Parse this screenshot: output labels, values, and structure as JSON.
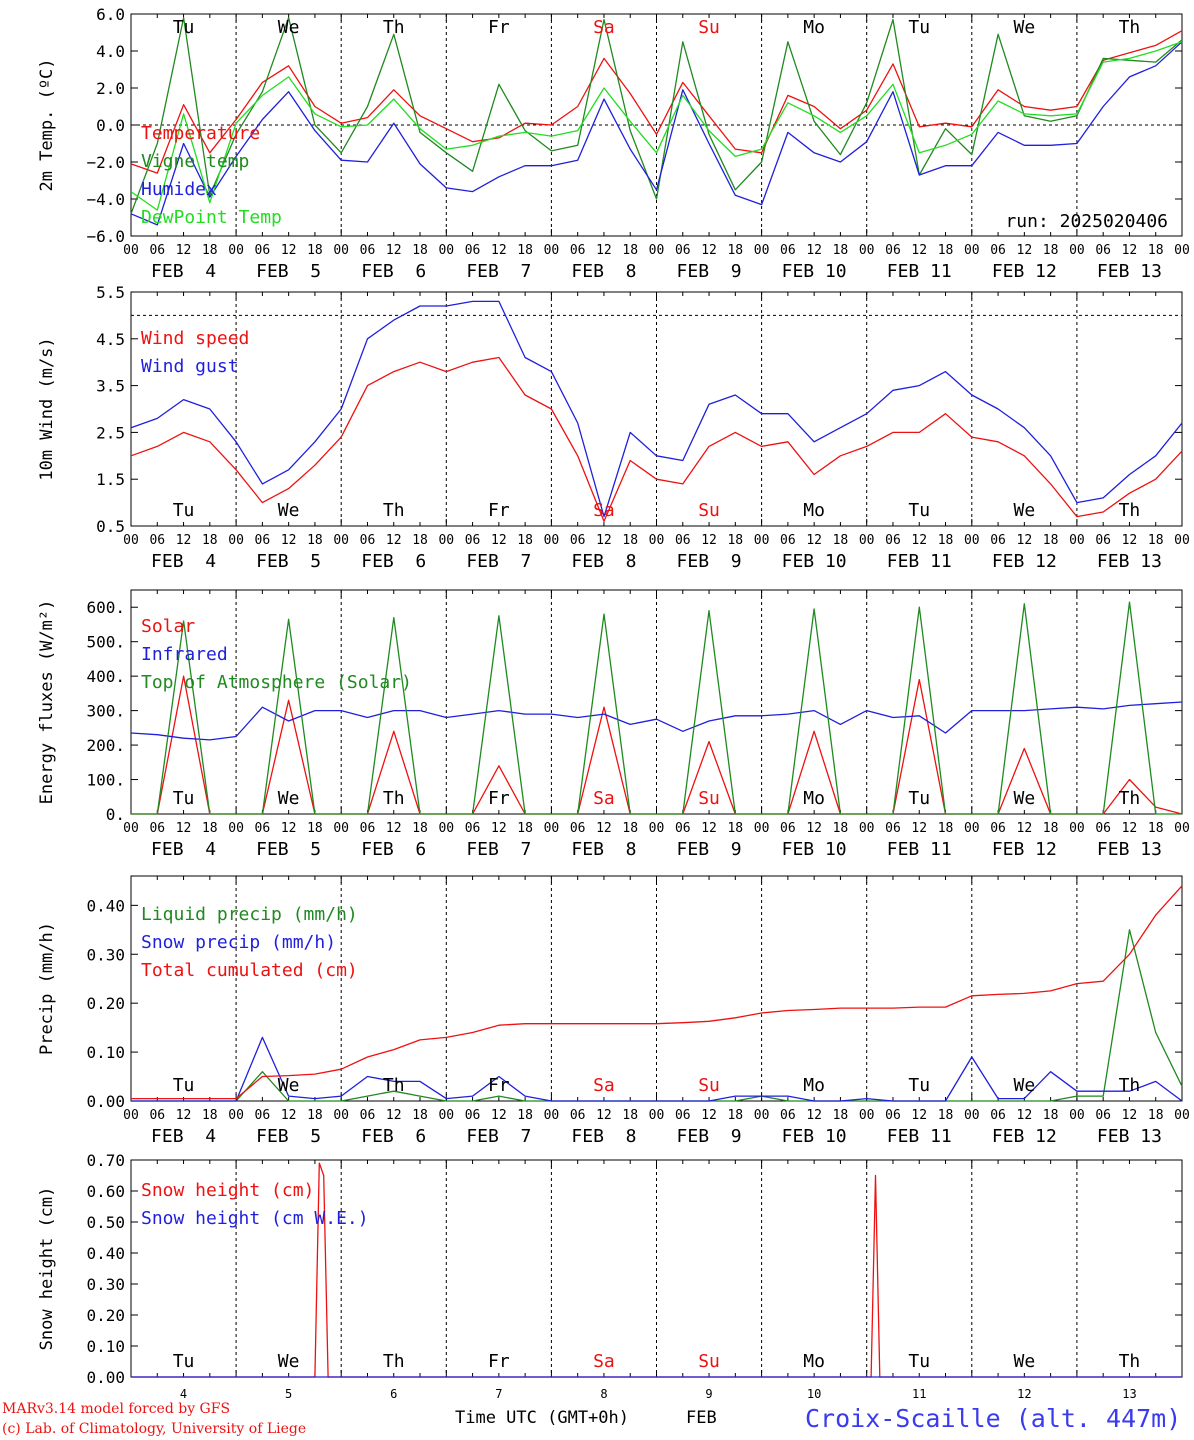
{
  "colors": {
    "red": "#ee1111",
    "green": "#1f8a1f",
    "blue": "#1f1fdd",
    "lightgreen": "#22dd22",
    "axis": "#000000",
    "site": "#3a3aee"
  },
  "days": {
    "abbr": [
      "Tu",
      "We",
      "Th",
      "Fr",
      "Sa",
      "Su",
      "Mo",
      "Tu",
      "We",
      "Th"
    ],
    "weekend_index": [
      4,
      5
    ],
    "dates": [
      "FEB  4",
      "FEB  5",
      "FEB  6",
      "FEB  7",
      "FEB  8",
      "FEB  9",
      "FEB 10",
      "FEB 11",
      "FEB 12",
      "FEB 13"
    ],
    "day_numbers": [
      "4",
      "5",
      "6",
      "7",
      "8",
      "9",
      "10",
      "11",
      "12",
      "13"
    ],
    "hour_ticks": [
      "00",
      "06",
      "12",
      "18"
    ],
    "final_hour": "00"
  },
  "footer": {
    "model_line": "MARv3.14 model forced by GFS",
    "lab_line": "(c) Lab. of Climatology, University of Liege",
    "time_label": "Time UTC (GMT+0h)",
    "month_label": "FEB",
    "site": "Croix-Scaille (alt. 447m)"
  },
  "chart_data": [
    {
      "type": "line",
      "ylabel": "2m Temp. (ºC)",
      "ylim": [
        -6,
        6
      ],
      "yticks": [
        "6.0",
        "4.0",
        "2.0",
        "0.0",
        "−2.0",
        "−4.0",
        "−6.0"
      ],
      "ytick_values": [
        6,
        4,
        2,
        0,
        -2,
        -4,
        -6
      ],
      "reference_line": 0,
      "annotation": "run: 2025020406",
      "legend": [
        "Temperature",
        "Vigne temp",
        "Humidex",
        "DewPoint Temp"
      ],
      "x_hours": [
        0,
        6,
        12,
        18,
        24,
        30,
        36,
        42,
        48,
        54,
        60,
        66,
        72,
        78,
        84,
        90,
        96,
        102,
        108,
        114,
        120,
        126,
        132,
        138,
        144,
        150,
        156,
        162,
        168,
        174,
        180,
        186,
        192,
        198,
        204,
        210,
        216,
        222,
        228,
        234,
        240
      ],
      "series": [
        {
          "name": "Temperature",
          "color": "red",
          "values": [
            -2.1,
            -2.6,
            1.1,
            -1.5,
            0.3,
            2.3,
            3.2,
            1.0,
            0.1,
            0.4,
            1.9,
            0.5,
            -0.2,
            -0.9,
            -0.7,
            0.1,
            0.0,
            1.0,
            3.6,
            1.7,
            -0.5,
            2.3,
            0.5,
            -1.3,
            -1.5,
            1.6,
            1.0,
            -0.2,
            0.8,
            3.3,
            -0.1,
            0.1,
            -0.1,
            1.9,
            1.0,
            0.8,
            1.0,
            3.5,
            3.9,
            4.3,
            5.1
          ]
        },
        {
          "name": "Vigne temp",
          "color": "green",
          "values": [
            -4.8,
            -1.0,
            5.8,
            -3.8,
            -0.5,
            1.8,
            5.8,
            0.0,
            -1.5,
            1.0,
            4.9,
            -0.4,
            -1.5,
            -2.5,
            2.2,
            -0.3,
            -1.4,
            -1.1,
            5.7,
            -0.3,
            -4.0,
            4.5,
            -0.5,
            -3.5,
            -2.0,
            4.5,
            0.2,
            -1.6,
            1.2,
            5.7,
            -2.7,
            -0.2,
            -1.6,
            4.9,
            0.5,
            0.2,
            0.5,
            3.6,
            3.5,
            3.4,
            4.6
          ]
        },
        {
          "name": "Humidex",
          "color": "blue",
          "values": [
            -4.8,
            -5.4,
            -1.0,
            -3.9,
            -1.7,
            0.3,
            1.8,
            -0.3,
            -1.9,
            -2.0,
            0.1,
            -2.1,
            -3.4,
            -3.6,
            -2.8,
            -2.2,
            -2.2,
            -1.9,
            1.4,
            -1.3,
            -3.5,
            1.9,
            -1.0,
            -3.8,
            -4.3,
            -0.4,
            -1.5,
            -2.0,
            -0.9,
            1.8,
            -2.7,
            -2.2,
            -2.2,
            -0.4,
            -1.1,
            -1.1,
            -1.0,
            1.0,
            2.6,
            3.2,
            4.5
          ]
        },
        {
          "name": "DewPoint Temp",
          "color": "lightgreen",
          "values": [
            -3.6,
            -4.6,
            0.6,
            -4.2,
            0.1,
            1.6,
            2.6,
            0.6,
            -0.1,
            0.0,
            1.4,
            -0.2,
            -1.3,
            -1.1,
            -0.6,
            -0.4,
            -0.6,
            -0.3,
            2.0,
            0.2,
            -1.5,
            1.6,
            -0.3,
            -1.7,
            -1.3,
            1.2,
            0.5,
            -0.4,
            0.5,
            2.2,
            -1.5,
            -1.1,
            -0.5,
            1.3,
            0.6,
            0.5,
            0.6,
            3.4,
            3.6,
            4.0,
            4.5
          ]
        }
      ]
    },
    {
      "type": "line",
      "ylabel": "10m Wind (m/s)",
      "ylim": [
        0.5,
        5.5
      ],
      "yticks": [
        "5.5",
        "4.5",
        "3.5",
        "2.5",
        "1.5",
        "0.5"
      ],
      "ytick_values": [
        5.5,
        4.5,
        3.5,
        2.5,
        1.5,
        0.5
      ],
      "reference_line": 5.0,
      "legend": [
        "Wind speed",
        "Wind gust"
      ],
      "x_hours": [
        0,
        6,
        12,
        18,
        24,
        30,
        36,
        42,
        48,
        54,
        60,
        66,
        72,
        78,
        84,
        90,
        96,
        102,
        108,
        114,
        120,
        126,
        132,
        138,
        144,
        150,
        156,
        162,
        168,
        174,
        180,
        186,
        192,
        198,
        204,
        210,
        216,
        222,
        228,
        234,
        240
      ],
      "series": [
        {
          "name": "Wind speed",
          "color": "red",
          "values": [
            2.0,
            2.2,
            2.5,
            2.3,
            1.7,
            1.0,
            1.3,
            1.8,
            2.4,
            3.5,
            3.8,
            4.0,
            3.8,
            4.0,
            4.1,
            3.3,
            3.0,
            2.0,
            0.6,
            1.9,
            1.5,
            1.4,
            2.2,
            2.5,
            2.2,
            2.3,
            1.6,
            2.0,
            2.2,
            2.5,
            2.5,
            2.9,
            2.4,
            2.3,
            2.0,
            1.4,
            0.7,
            0.8,
            1.2,
            1.5,
            2.1
          ]
        },
        {
          "name": "Wind gust",
          "color": "blue",
          "values": [
            2.6,
            2.8,
            3.2,
            3.0,
            2.3,
            1.4,
            1.7,
            2.3,
            3.0,
            4.5,
            4.9,
            5.2,
            5.2,
            5.3,
            5.3,
            4.1,
            3.8,
            2.7,
            0.7,
            2.5,
            2.0,
            1.9,
            3.1,
            3.3,
            2.9,
            2.9,
            2.3,
            2.6,
            2.9,
            3.4,
            3.5,
            3.8,
            3.3,
            3.0,
            2.6,
            2.0,
            1.0,
            1.1,
            1.6,
            2.0,
            2.7
          ]
        }
      ]
    },
    {
      "type": "line",
      "ylabel": "Energy fluxes (W/m²)",
      "ylim": [
        0,
        650
      ],
      "yticks": [
        "600.",
        "500.",
        "400.",
        "300.",
        "200.",
        "100.",
        "0."
      ],
      "ytick_values": [
        600,
        500,
        400,
        300,
        200,
        100,
        0
      ],
      "legend": [
        "Solar",
        "Infrared",
        "Top of Atmosphere (Solar)"
      ],
      "x_hours": [
        0,
        6,
        12,
        18,
        24,
        30,
        36,
        42,
        48,
        54,
        60,
        66,
        72,
        78,
        84,
        90,
        96,
        102,
        108,
        114,
        120,
        126,
        132,
        138,
        144,
        150,
        156,
        162,
        168,
        174,
        180,
        186,
        192,
        198,
        204,
        210,
        216,
        222,
        228,
        234,
        240
      ],
      "series": [
        {
          "name": "Solar",
          "color": "red",
          "values": [
            0,
            0,
            400,
            0,
            0,
            0,
            330,
            0,
            0,
            0,
            240,
            0,
            0,
            0,
            140,
            0,
            0,
            0,
            310,
            0,
            0,
            0,
            210,
            0,
            0,
            0,
            240,
            0,
            0,
            0,
            390,
            0,
            0,
            0,
            190,
            0,
            0,
            0,
            100,
            20,
            0
          ]
        },
        {
          "name": "Infrared",
          "color": "blue",
          "values": [
            235,
            230,
            220,
            215,
            225,
            310,
            270,
            300,
            300,
            280,
            300,
            300,
            280,
            290,
            300,
            290,
            290,
            280,
            290,
            260,
            275,
            240,
            270,
            285,
            285,
            290,
            300,
            260,
            300,
            280,
            285,
            235,
            300,
            300,
            300,
            305,
            310,
            305,
            315,
            320,
            325
          ]
        },
        {
          "name": "Top of Atmosphere (Solar)",
          "color": "green",
          "values": [
            0,
            0,
            560,
            0,
            0,
            0,
            565,
            0,
            0,
            0,
            570,
            0,
            0,
            0,
            575,
            0,
            0,
            0,
            580,
            0,
            0,
            0,
            590,
            0,
            0,
            0,
            595,
            0,
            0,
            0,
            600,
            0,
            0,
            0,
            610,
            0,
            0,
            0,
            615,
            0,
            0
          ]
        }
      ]
    },
    {
      "type": "line",
      "ylabel": "Precip (mm/h)",
      "ylim": [
        0,
        0.46
      ],
      "yticks": [
        "0.40",
        "0.30",
        "0.20",
        "0.10",
        "0.00"
      ],
      "ytick_values": [
        0.4,
        0.3,
        0.2,
        0.1,
        0.0
      ],
      "legend": [
        "Liquid precip (mm/h)",
        "Snow precip (mm/h)",
        "Total cumulated (cm)"
      ],
      "x_hours": [
        0,
        6,
        12,
        18,
        24,
        30,
        36,
        42,
        48,
        54,
        60,
        66,
        72,
        78,
        84,
        90,
        96,
        102,
        108,
        114,
        120,
        126,
        132,
        138,
        144,
        150,
        156,
        162,
        168,
        174,
        180,
        186,
        192,
        198,
        204,
        210,
        216,
        222,
        228,
        234,
        240
      ],
      "series": [
        {
          "name": "Liquid precip (mm/h)",
          "color": "green",
          "values": [
            0,
            0,
            0,
            0,
            0,
            0.06,
            0,
            0,
            0,
            0.01,
            0.02,
            0.01,
            0,
            0,
            0.01,
            0,
            0,
            0,
            0,
            0,
            0,
            0,
            0,
            0,
            0.01,
            0,
            0,
            0,
            0,
            0,
            0,
            0,
            0,
            0,
            0,
            0,
            0.01,
            0.01,
            0.35,
            0.14,
            0.03
          ]
        },
        {
          "name": "Snow precip (mm/h)",
          "color": "blue",
          "values": [
            0,
            0,
            0,
            0,
            0,
            0.13,
            0.01,
            0.005,
            0.01,
            0.05,
            0.04,
            0.04,
            0.005,
            0.01,
            0.05,
            0.01,
            0,
            0,
            0,
            0,
            0,
            0,
            0,
            0.01,
            0.01,
            0.01,
            0,
            0,
            0.005,
            0,
            0,
            0,
            0.09,
            0.005,
            0.005,
            0.06,
            0.02,
            0.02,
            0.02,
            0.04,
            0
          ]
        },
        {
          "name": "Total cumulated (cm)",
          "color": "red",
          "values": [
            0.005,
            0.005,
            0.005,
            0.005,
            0.005,
            0.05,
            0.052,
            0.055,
            0.065,
            0.09,
            0.105,
            0.125,
            0.13,
            0.14,
            0.155,
            0.158,
            0.158,
            0.158,
            0.158,
            0.158,
            0.158,
            0.16,
            0.163,
            0.17,
            0.18,
            0.185,
            0.187,
            0.19,
            0.19,
            0.19,
            0.192,
            0.192,
            0.215,
            0.218,
            0.22,
            0.225,
            0.24,
            0.245,
            0.3,
            0.38,
            0.44
          ]
        }
      ]
    },
    {
      "type": "line",
      "ylabel": "Snow height (cm)",
      "ylim": [
        0,
        0.7
      ],
      "yticks": [
        "0.70",
        "0.60",
        "0.50",
        "0.40",
        "0.30",
        "0.20",
        "0.10",
        "0.00"
      ],
      "ytick_values": [
        0.7,
        0.6,
        0.5,
        0.4,
        0.3,
        0.2,
        0.1,
        0.0
      ],
      "legend": [
        "Snow height (cm)",
        "Snow height (cm W.E.)"
      ],
      "x_hours": [
        0,
        6,
        12,
        18,
        24,
        30,
        36,
        42,
        43,
        44,
        45,
        46,
        48,
        54,
        60,
        66,
        72,
        78,
        84,
        90,
        96,
        102,
        108,
        114,
        120,
        126,
        132,
        138,
        144,
        150,
        156,
        162,
        169,
        170,
        171,
        172,
        174,
        180,
        186,
        192,
        198,
        204,
        210,
        216,
        222,
        228,
        234,
        240
      ],
      "series": [
        {
          "name": "Snow height (cm)",
          "color": "red",
          "values": [
            0,
            0,
            0,
            0,
            0,
            0,
            0,
            0,
            0.69,
            0.65,
            0,
            0,
            0,
            0,
            0,
            0,
            0,
            0,
            0,
            0,
            0,
            0,
            0,
            0,
            0,
            0,
            0,
            0,
            0,
            0,
            0,
            0,
            0,
            0.65,
            0,
            0,
            0,
            0,
            0,
            0,
            0,
            0,
            0,
            0,
            0,
            0,
            0,
            0
          ]
        },
        {
          "name": "Snow height (cm W.E.)",
          "color": "blue",
          "values": [
            0,
            0,
            0,
            0,
            0,
            0,
            0,
            0,
            0,
            0,
            0,
            0,
            0,
            0,
            0,
            0,
            0,
            0,
            0,
            0,
            0,
            0,
            0,
            0,
            0,
            0,
            0,
            0,
            0,
            0,
            0,
            0,
            0,
            0,
            0,
            0,
            0,
            0,
            0,
            0,
            0,
            0,
            0,
            0,
            0,
            0,
            0,
            0
          ]
        }
      ]
    }
  ]
}
